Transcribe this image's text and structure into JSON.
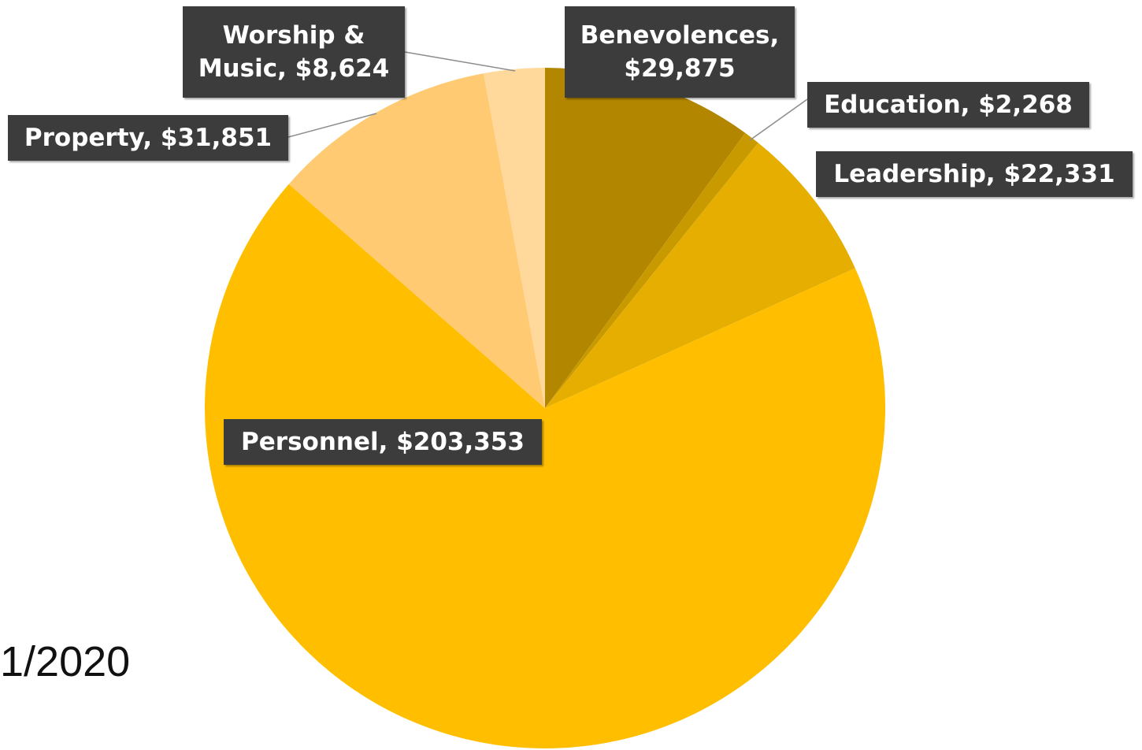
{
  "footer_date": "1/2020",
  "chart_data": {
    "type": "pie",
    "title": "",
    "start_angle_deg": 0,
    "direction": "clockwise",
    "slices": [
      {
        "label": "Benevolences",
        "value": 29875,
        "display": "Benevolences, $29,875",
        "lines": [
          "Benevolences,",
          "$29,875"
        ],
        "color": "#b38600"
      },
      {
        "label": "Education",
        "value": 2268,
        "display": "Education, $2,268",
        "lines": [
          "Education, $2,268"
        ],
        "color": "#c99a00"
      },
      {
        "label": "Leadership",
        "value": 22331,
        "display": "Leadership, $22,331",
        "lines": [
          "Leadership, $22,331"
        ],
        "color": "#e6ae00"
      },
      {
        "label": "Personnel",
        "value": 203353,
        "display": "Personnel, $203,353",
        "lines": [
          "Personnel, $203,353"
        ],
        "color": "#ffbf00"
      },
      {
        "label": "Property",
        "value": 31851,
        "display": "Property, $31,851",
        "lines": [
          "Property, $31,851"
        ],
        "color": "#ffca72"
      },
      {
        "label": "Worship & Music",
        "value": 8624,
        "display": "Worship & Music, $8,624",
        "lines": [
          "Worship &",
          "Music, $8,624"
        ],
        "color": "#ffd89b"
      }
    ]
  }
}
